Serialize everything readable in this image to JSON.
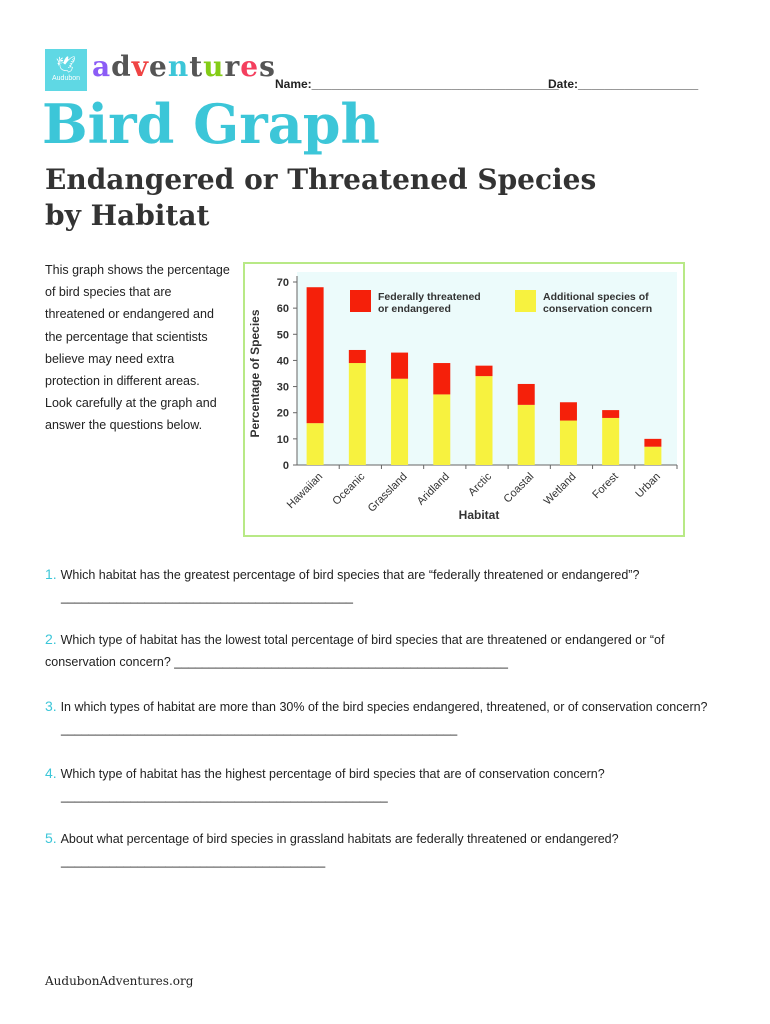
{
  "header": {
    "logo_text": "Audubon",
    "brand": [
      "a",
      "d",
      "v",
      "e",
      "n",
      "t",
      "u",
      "r",
      "e",
      "s"
    ],
    "brand_colors": [
      "#8b5cf6",
      "#555555",
      "#ef4444",
      "#555555",
      "#3cc6d8",
      "#555555",
      "#84cc16",
      "#555555",
      "#f43f5e",
      "#555555"
    ],
    "name_label": "Name:_____________________________________",
    "date_label": "Date:__________________"
  },
  "title": "Bird Graph",
  "subtitle_line1": "Endangered or Threatened Species",
  "subtitle_line2": "by Habitat",
  "intro": "This graph shows the percentage of bird species that are threatened or endangered and the percentage that scientists believe may need extra protection in different areas. Look carefully at the graph and answer the questions below.",
  "chart_data": {
    "type": "bar",
    "stacked": true,
    "categories": [
      "Hawaiian",
      "Oceanic",
      "Grassland",
      "Aridland",
      "Arctic",
      "Coastal",
      "Wetland",
      "Forest",
      "Urban"
    ],
    "series": [
      {
        "name": "Additional species of conservation concern",
        "color": "#f7f23f",
        "values": [
          16,
          39,
          33,
          27,
          34,
          23,
          17,
          18,
          7
        ]
      },
      {
        "name": "Federally threatened or endangered",
        "color": "#f5200a",
        "values": [
          52,
          5,
          10,
          12,
          4,
          8,
          7,
          3,
          3
        ]
      }
    ],
    "legend": [
      "Federally threatened",
      "or endangered",
      "Additional species of",
      "conservation concern"
    ],
    "xlabel": "Habitat",
    "ylabel": "Percentage of Species",
    "ylim": [
      0,
      70
    ],
    "yticks": [
      "0",
      "10",
      "20",
      "30",
      "40",
      "50",
      "60",
      "70"
    ],
    "background": "#ecfbfb"
  },
  "questions": [
    {
      "num": "1.",
      "text": "Which habitat has the greatest percentage of bird species that are “federally threatened or endangered”?",
      "line": "__________________________________________"
    },
    {
      "num": "2.",
      "text": "Which type of habitat has the lowest total percentage of bird species that are threatened or endangered or “of conservation concern? ________________________________________________",
      "line": ""
    },
    {
      "num": "3.",
      "text": "In which types of habitat are more than 30% of the bird species endangered, threatened, or of conservation concern?",
      "line": "_________________________________________________________"
    },
    {
      "num": "4.",
      "text": "Which type of habitat has the highest percentage of bird species that are of conservation concern?",
      "line": "_______________________________________________"
    },
    {
      "num": "5.",
      "text": "About what percentage of bird species in grassland habitats are federally threatened or endangered?",
      "line": "______________________________________"
    }
  ],
  "footer": "AudubonAdventures.org"
}
